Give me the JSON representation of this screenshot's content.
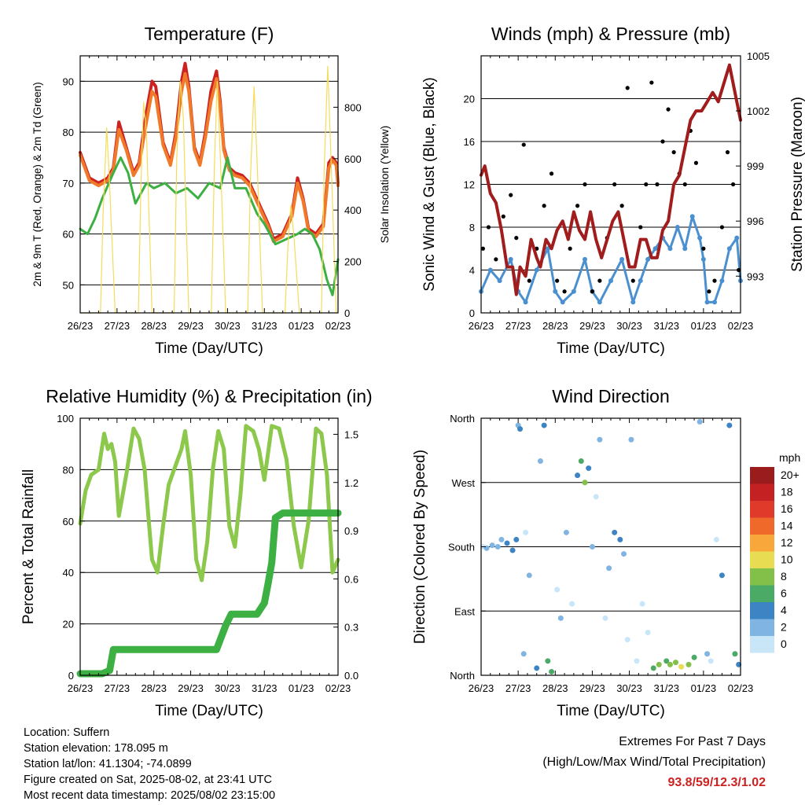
{
  "x_ticks": [
    "26/23",
    "27/23",
    "28/23",
    "29/23",
    "30/23",
    "31/23",
    "01/23",
    "02/23"
  ],
  "chart_data": [
    {
      "type": "line",
      "title": "Temperature (F)",
      "xlabel": "Time (Day/UTC)",
      "ylabel": "2m & 9m T (Red, Orange) & 2m Td (Green)",
      "ylabel_right": "Solar Insolation (Yellow)",
      "x_unit": "days since 26/23 UTC",
      "xlim": [
        0,
        7
      ],
      "ylim": [
        44.5,
        95
      ],
      "y_ticks": [
        50,
        60,
        70,
        80,
        90
      ],
      "ylim_right": [
        0,
        1000
      ],
      "y_ticks_right": [
        0,
        200,
        400,
        600,
        800
      ],
      "grid_y": true,
      "series": [
        {
          "name": "2m T",
          "color": "#cc2222",
          "axis": "left",
          "x": [
            0,
            0.25,
            0.5,
            0.75,
            0.9,
            1.05,
            1.25,
            1.45,
            1.6,
            1.8,
            1.95,
            2.05,
            2.25,
            2.45,
            2.6,
            2.75,
            2.85,
            2.95,
            3.1,
            3.25,
            3.4,
            3.55,
            3.7,
            3.8,
            3.9,
            4.05,
            4.2,
            4.4,
            4.6,
            4.85,
            5.1,
            5.25,
            5.5,
            5.75,
            5.9,
            6.05,
            6.2,
            6.4,
            6.6,
            6.75,
            6.85,
            6.95,
            7
          ],
          "y": [
            76,
            71,
            70,
            71,
            73,
            82,
            77,
            72,
            74,
            84,
            90,
            89,
            78,
            74,
            80,
            90,
            93.5,
            89,
            77,
            74,
            80,
            88,
            92,
            86,
            77,
            73,
            72,
            71.5,
            70,
            66,
            62,
            59,
            60,
            64,
            71,
            67,
            61,
            60,
            62,
            74,
            75,
            74,
            70
          ]
        },
        {
          "name": "9m T",
          "color": "#f07a2a",
          "axis": "left",
          "x": [
            0,
            0.25,
            0.5,
            0.75,
            0.9,
            1.05,
            1.25,
            1.45,
            1.6,
            1.8,
            1.95,
            2.05,
            2.25,
            2.45,
            2.6,
            2.75,
            2.85,
            2.95,
            3.1,
            3.25,
            3.4,
            3.55,
            3.7,
            3.8,
            3.9,
            4.05,
            4.2,
            4.4,
            4.6,
            4.85,
            5.1,
            5.25,
            5.5,
            5.75,
            5.9,
            6.05,
            6.2,
            6.4,
            6.6,
            6.75,
            6.85,
            6.95,
            7
          ],
          "y": [
            75.5,
            70.5,
            69.5,
            70.5,
            72.5,
            80.5,
            76.5,
            71.5,
            73.5,
            82,
            88,
            87,
            77.5,
            73.5,
            79,
            88,
            91.5,
            88,
            76.5,
            73.5,
            79,
            86,
            90.5,
            85,
            76.5,
            72.5,
            71.5,
            71,
            69.5,
            65.5,
            61.5,
            58.5,
            59.5,
            63.5,
            70,
            66.5,
            60.5,
            59.5,
            61.5,
            73,
            74.5,
            73.5,
            69.5
          ]
        },
        {
          "name": "2m Td",
          "color": "#3cb043",
          "axis": "left",
          "x": [
            0,
            0.2,
            0.4,
            0.6,
            0.9,
            1.1,
            1.3,
            1.5,
            1.8,
            2.0,
            2.3,
            2.6,
            2.9,
            3.2,
            3.5,
            3.8,
            4.0,
            4.2,
            4.5,
            4.8,
            5.0,
            5.3,
            5.6,
            5.9,
            6.1,
            6.3,
            6.5,
            6.7,
            6.85,
            7
          ],
          "y": [
            61,
            60,
            63,
            67,
            72,
            75,
            72,
            66,
            70,
            69,
            70,
            68,
            69,
            67,
            70,
            69,
            75,
            69,
            69,
            64,
            62,
            58,
            59,
            60,
            61,
            60,
            57,
            51,
            48,
            55
          ]
        },
        {
          "name": "Solar Insolation",
          "color": "#f4dc5a",
          "axis": "right",
          "x": [
            0,
            0.55,
            0.62,
            0.72,
            0.78,
            0.95,
            1.3,
            1.58,
            1.65,
            1.72,
            1.8,
            1.95,
            2.3,
            2.55,
            2.62,
            2.72,
            2.8,
            2.95,
            3.3,
            3.56,
            3.64,
            3.72,
            3.8,
            3.95,
            4.3,
            4.55,
            4.62,
            4.72,
            4.8,
            4.95,
            5.3,
            5.56,
            5.64,
            5.72,
            5.8,
            5.95,
            6.3,
            6.55,
            6.62,
            6.72,
            6.8,
            6.95,
            7
          ],
          "y": [
            0,
            0,
            380,
            720,
            560,
            0,
            0,
            0,
            500,
            820,
            700,
            0,
            0,
            0,
            600,
            900,
            760,
            0,
            0,
            0,
            560,
            900,
            620,
            0,
            0,
            0,
            520,
            880,
            600,
            0,
            0,
            0,
            260,
            420,
            300,
            0,
            0,
            0,
            540,
            960,
            640,
            0,
            0
          ]
        }
      ]
    },
    {
      "type": "scatter",
      "title": "Winds (mph) & Pressure (mb)",
      "xlabel": "Time (Day/UTC)",
      "ylabel": "Sonic Wind & Gust (Blue, Black)",
      "ylabel_right": "Station Pressure (Maroon)",
      "x_unit": "days since 26/23 UTC",
      "xlim": [
        0,
        7
      ],
      "ylim": [
        0,
        24
      ],
      "y_ticks": [
        0,
        4,
        8,
        12,
        16,
        20
      ],
      "ylim_right": [
        991,
        1005
      ],
      "y_ticks_right": [
        993,
        996,
        999,
        1002,
        1005
      ],
      "grid_y": true,
      "series": [
        {
          "name": "Sonic Wind",
          "color": "#4a90d0",
          "axis": "left",
          "x": [
            0,
            0.25,
            0.5,
            0.8,
            1.0,
            1.2,
            1.5,
            1.8,
            2.0,
            2.2,
            2.5,
            2.8,
            3.0,
            3.2,
            3.5,
            3.8,
            4.1,
            4.3,
            4.5,
            4.7,
            4.9,
            5.1,
            5.3,
            5.5,
            5.7,
            5.9,
            6.0,
            6.1,
            6.3,
            6.5,
            6.7,
            6.9,
            7
          ],
          "y": [
            2,
            4,
            3,
            5,
            2,
            1,
            4,
            6,
            2,
            1,
            2,
            5,
            2,
            1,
            3,
            5,
            1,
            3,
            5,
            6,
            7,
            6,
            8,
            6,
            9,
            7,
            5,
            1,
            1,
            3,
            6,
            7,
            3
          ]
        },
        {
          "name": "Gust",
          "color": "#000000",
          "axis": "left",
          "x": [
            0.05,
            0.2,
            0.4,
            0.6,
            0.8,
            0.95,
            1.15,
            1.3,
            1.5,
            1.7,
            1.9,
            2.05,
            2.25,
            2.4,
            2.6,
            2.8,
            3.0,
            3.2,
            3.4,
            3.6,
            3.8,
            3.95,
            4.1,
            4.3,
            4.45,
            4.6,
            4.75,
            4.9,
            5.05,
            5.2,
            5.35,
            5.5,
            5.65,
            5.8,
            6.0,
            6.15,
            6.3,
            6.5,
            6.65,
            6.8,
            6.95
          ],
          "y": [
            6,
            8,
            5,
            9,
            11,
            7,
            15.7,
            3,
            6,
            10,
            13,
            3,
            2,
            6,
            10,
            12,
            2,
            3,
            7,
            12,
            10,
            21,
            3,
            8,
            12,
            21.5,
            12,
            16,
            19,
            15,
            13,
            12,
            17,
            14,
            6,
            2,
            3,
            8,
            15,
            12,
            4
          ]
        },
        {
          "name": "Station Pressure",
          "color": "#a11c1c",
          "axis": "right",
          "x": [
            0,
            0.1,
            0.25,
            0.4,
            0.55,
            0.7,
            0.85,
            0.95,
            1.05,
            1.2,
            1.35,
            1.5,
            1.6,
            1.75,
            1.9,
            2.05,
            2.2,
            2.35,
            2.5,
            2.65,
            2.8,
            2.95,
            3.1,
            3.25,
            3.4,
            3.55,
            3.7,
            3.85,
            4.0,
            4.15,
            4.3,
            4.45,
            4.6,
            4.75,
            4.9,
            5.05,
            5.2,
            5.35,
            5.5,
            5.65,
            5.8,
            5.95,
            6.1,
            6.25,
            6.4,
            6.55,
            6.7,
            6.85,
            7
          ],
          "y": [
            998.5,
            999,
            997.5,
            997,
            995.5,
            993.5,
            993.5,
            992,
            993.5,
            993,
            995,
            994,
            993.5,
            995,
            994.5,
            995.5,
            996,
            995,
            996.5,
            995.5,
            995,
            996.5,
            995,
            994,
            995,
            996,
            996.5,
            995,
            993.5,
            993.5,
            995,
            995,
            994,
            994,
            995.5,
            996,
            998,
            998.5,
            1000,
            1001.5,
            1002,
            1002,
            1002.5,
            1003,
            1002.5,
            1003.5,
            1004.5,
            1003,
            1001.5
          ]
        }
      ]
    },
    {
      "type": "line",
      "title": "Relative Humidity (%) & Precipitation (in)",
      "xlabel": "Time (Day/UTC)",
      "ylabel": "Percent & Total Rainfall",
      "x_unit": "days since 26/23 UTC",
      "xlim": [
        0,
        7
      ],
      "ylim": [
        0,
        100
      ],
      "y_ticks": [
        0,
        20,
        40,
        60,
        80,
        100
      ],
      "ylim_right": [
        0,
        1.6
      ],
      "y_ticks_right": [
        0.0,
        0.3,
        0.6,
        0.9,
        1.2,
        1.5
      ],
      "grid_y": true,
      "series": [
        {
          "name": "Relative Humidity",
          "color": "#8cc84b",
          "axis": "left",
          "x": [
            0,
            0.15,
            0.3,
            0.5,
            0.65,
            0.75,
            0.85,
            0.95,
            1.05,
            1.25,
            1.45,
            1.6,
            1.75,
            1.85,
            1.95,
            2.1,
            2.25,
            2.4,
            2.6,
            2.75,
            2.85,
            3.0,
            3.15,
            3.3,
            3.45,
            3.6,
            3.75,
            3.9,
            4.05,
            4.2,
            4.35,
            4.5,
            4.7,
            4.85,
            5.0,
            5.2,
            5.4,
            5.6,
            5.8,
            6.0,
            6.2,
            6.4,
            6.55,
            6.7,
            6.85,
            7
          ],
          "y": [
            59,
            72,
            78,
            80,
            94,
            88,
            90,
            83,
            62,
            78,
            96,
            92,
            80,
            62,
            45,
            40,
            58,
            74,
            82,
            88,
            95,
            78,
            45,
            37,
            52,
            80,
            95,
            88,
            58,
            50,
            70,
            97,
            95,
            88,
            76,
            97,
            96,
            84,
            58,
            42,
            60,
            96,
            94,
            78,
            40,
            45
          ]
        },
        {
          "name": "Total Precipitation",
          "color": "#3cb043",
          "axis": "right",
          "x": [
            0,
            0.6,
            0.8,
            0.9,
            2.0,
            3.0,
            3.7,
            3.95,
            4.1,
            4.8,
            5.0,
            5.1,
            5.2,
            5.3,
            5.5,
            6.0,
            7
          ],
          "y": [
            0.01,
            0.01,
            0.03,
            0.16,
            0.16,
            0.16,
            0.16,
            0.31,
            0.38,
            0.38,
            0.45,
            0.57,
            0.7,
            0.98,
            1.01,
            1.01,
            1.01
          ]
        }
      ]
    },
    {
      "type": "scatter",
      "title": "Wind Direction",
      "xlabel": "Time (Day/UTC)",
      "ylabel": "Direction (Colored By Speed)",
      "x_unit": "days since 26/23 UTC",
      "xlim": [
        0,
        7
      ],
      "ylim": [
        0,
        360
      ],
      "y_ticks": [
        0,
        90,
        180,
        270,
        360
      ],
      "y_tick_labels": [
        "North",
        "East",
        "South",
        "West",
        "North"
      ],
      "grid_y": true,
      "colorbar": {
        "title": "mph",
        "labels": [
          "20+",
          "18",
          "16",
          "14",
          "12",
          "10",
          "8",
          "6",
          "4",
          "2",
          "0"
        ],
        "colors": [
          "#9b1c1c",
          "#c42222",
          "#e03a2a",
          "#ef6a2a",
          "#f8a83a",
          "#e8dc52",
          "#82c04a",
          "#4aaa66",
          "#3c84c4",
          "#80b4e2",
          "#c8e6f8"
        ]
      },
      "series": [
        {
          "name": "direction",
          "x": [
            0.05,
            0.15,
            0.3,
            0.45,
            0.55,
            0.7,
            0.85,
            0.95,
            1.0,
            1.05,
            1.15,
            1.2,
            1.3,
            1.5,
            1.6,
            1.7,
            1.8,
            1.9,
            2.05,
            2.15,
            2.3,
            2.45,
            2.6,
            2.7,
            2.8,
            2.9,
            3.0,
            3.1,
            3.2,
            3.35,
            3.45,
            3.6,
            3.75,
            3.85,
            3.95,
            4.05,
            4.2,
            4.35,
            4.5,
            4.65,
            4.8,
            5.0,
            5.1,
            5.25,
            5.4,
            5.6,
            5.75,
            5.9,
            6.1,
            6.2,
            6.35,
            6.5,
            6.7,
            6.85,
            6.95
          ],
          "y": [
            180,
            178,
            182,
            180,
            190,
            185,
            175,
            190,
            350,
            345,
            30,
            200,
            140,
            10,
            300,
            350,
            20,
            5,
            120,
            80,
            200,
            100,
            280,
            300,
            270,
            290,
            180,
            250,
            330,
            80,
            150,
            200,
            190,
            170,
            50,
            330,
            20,
            100,
            60,
            10,
            15,
            20,
            15,
            18,
            12,
            15,
            25,
            355,
            30,
            20,
            190,
            140,
            350,
            30,
            15
          ],
          "speed": [
            1,
            2,
            3,
            2,
            3,
            4,
            5,
            4,
            3,
            5,
            2,
            1,
            2,
            4,
            3,
            5,
            7,
            6,
            1,
            2,
            2,
            1,
            4,
            6,
            8,
            5,
            2,
            1,
            3,
            1,
            2,
            4,
            4,
            3,
            1,
            2,
            1,
            1,
            1,
            6,
            9,
            7,
            8,
            9,
            10,
            8,
            7,
            3,
            2,
            1,
            1,
            4,
            5,
            6,
            4
          ]
        }
      ]
    }
  ],
  "footer": {
    "location": "Location: Suffern",
    "elevation": "Station elevation: 178.095 m",
    "latlon": "Station lat/lon: 41.1304; -74.0899",
    "created": "Figure created on Sat, 2025-08-02, at 23:41 UTC",
    "recent": "Most recent data timestamp: 2025/08/02 23:15:00"
  },
  "extremes": {
    "title": "Extremes For Past 7 Days",
    "subtitle": "(High/Low/Max Wind/Total Precipitation)",
    "values": "93.8/59/12.3/1.02"
  }
}
